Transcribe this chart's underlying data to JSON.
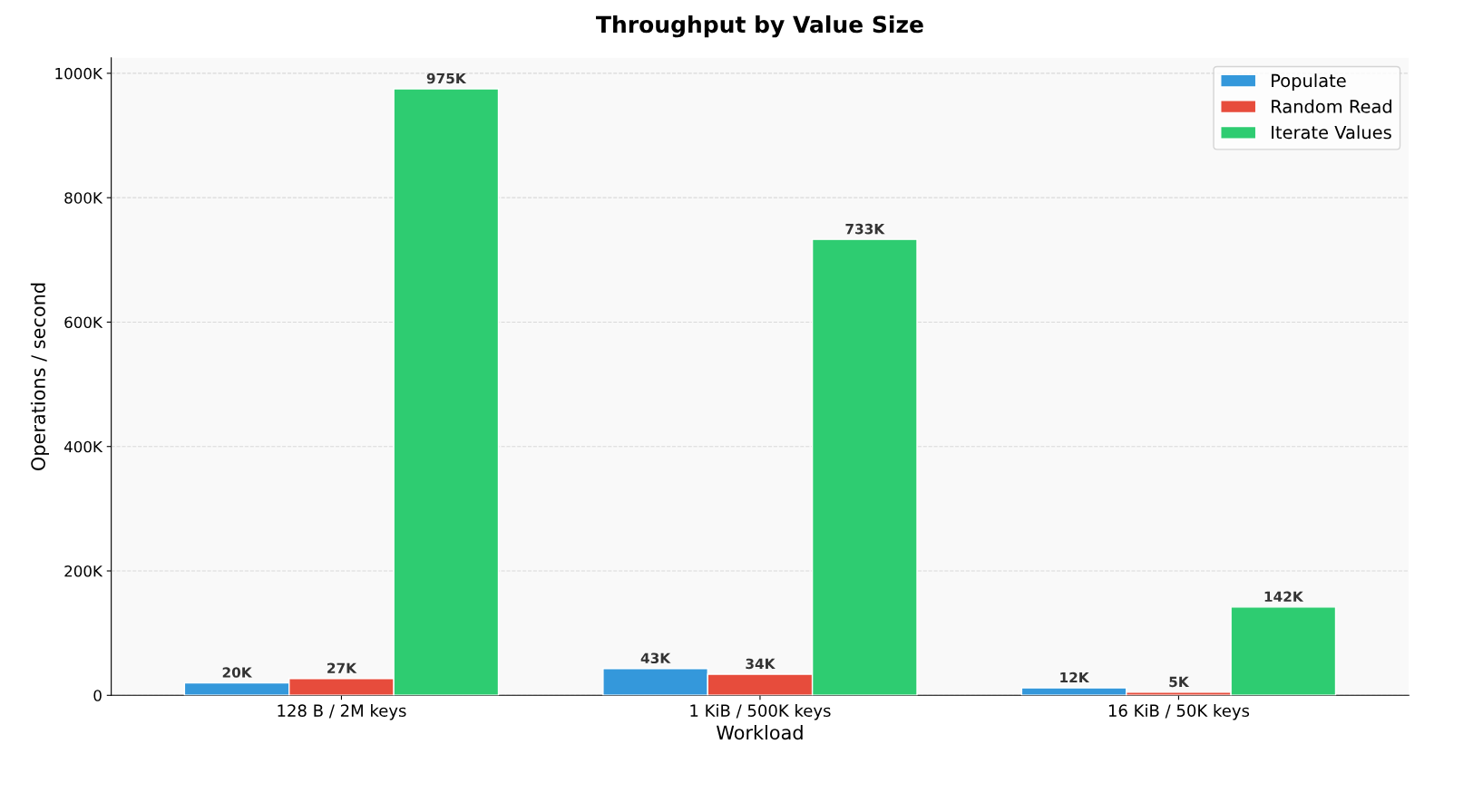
{
  "chart_data": {
    "type": "bar",
    "title": "Throughput by Value Size",
    "xlabel": "Workload",
    "ylabel": "Operations / second",
    "categories": [
      "128 B / 2M keys",
      "1 KiB / 500K keys",
      "16 KiB / 50K keys"
    ],
    "series": [
      {
        "name": "Populate",
        "color": "#3498db",
        "values": [
          20000,
          43000,
          12000
        ],
        "value_labels": [
          "20K",
          "43K",
          "12K"
        ]
      },
      {
        "name": "Random Read",
        "color": "#e74c3c",
        "values": [
          27000,
          34000,
          5000
        ],
        "value_labels": [
          "27K",
          "34K",
          "5K"
        ]
      },
      {
        "name": "Iterate Values",
        "color": "#2ecc71",
        "values": [
          975000,
          733000,
          142000
        ],
        "value_labels": [
          "975K",
          "733K",
          "142K"
        ]
      }
    ],
    "ylim": [
      0,
      1025000
    ],
    "yticks": [
      {
        "value": 0,
        "label": "0"
      },
      {
        "value": 200000,
        "label": "200K"
      },
      {
        "value": 400000,
        "label": "400K"
      },
      {
        "value": 600000,
        "label": "600K"
      },
      {
        "value": 800000,
        "label": "800K"
      },
      {
        "value": 1000000,
        "label": "1000K"
      }
    ],
    "grid": "y",
    "legend": "top right"
  }
}
